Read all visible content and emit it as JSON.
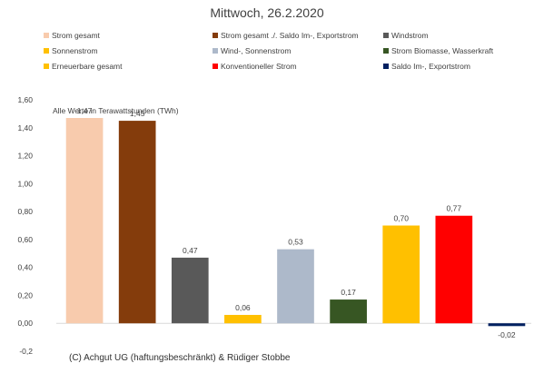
{
  "chart_data": {
    "type": "bar",
    "title": "Mittwoch, 26.2.2020",
    "note": "Alle Werte in Terawattstunden (TWh)",
    "categories": [
      "Strom gesamt",
      "Strom gesamt ./. Saldo Im-, Exportstrom",
      "Windstrom",
      "Sonnenstrom",
      "Wind-, Sonnenstrom",
      "Strom Biomasse, Wasserkraft",
      "Erneuerbare gesamt",
      "Konventioneller Strom",
      "Saldo Im-, Exportstrom"
    ],
    "values": [
      1.47,
      1.45,
      0.47,
      0.06,
      0.53,
      0.17,
      0.7,
      0.77,
      -0.02
    ],
    "value_labels": [
      "1,47",
      "1,45",
      "0,47",
      "0,06",
      "0,53",
      "0,17",
      "0,70",
      "0,77",
      "-0,02"
    ],
    "colors": [
      "#F8CBAD",
      "#843C0C",
      "#595959",
      "#FFC000",
      "#ADB9CA",
      "#375623",
      "#FFC000",
      "#FF0000",
      "#002060"
    ],
    "ylim": [
      -0.2,
      1.6
    ],
    "yticks": [
      1.6,
      1.4,
      1.2,
      1.0,
      0.8,
      0.6,
      0.4,
      0.2,
      0.0,
      -0.2
    ],
    "ytick_labels": [
      "1,60",
      "1,40",
      "1,20",
      "1,00",
      "0,80",
      "0,60",
      "0,40",
      "0,20",
      "0,00",
      "-0,2"
    ],
    "grid": false,
    "legend_position": "top"
  },
  "legend": [
    {
      "label": "Strom gesamt",
      "color": "#F8CBAD"
    },
    {
      "label": "Strom gesamt ./. Saldo Im-, Exportstrom",
      "color": "#843C0C"
    },
    {
      "label": "Windstrom",
      "color": "#595959"
    },
    {
      "label": "Sonnenstrom",
      "color": "#FFC000"
    },
    {
      "label": "Wind-, Sonnenstrom",
      "color": "#ADB9CA"
    },
    {
      "label": "Strom Biomasse, Wasserkraft",
      "color": "#375623"
    },
    {
      "label": "Erneuerbare gesamt",
      "color": "#FFC000"
    },
    {
      "label": "Konventioneller Strom",
      "color": "#FF0000"
    },
    {
      "label": "Saldo Im-, Exportstrom",
      "color": "#002060"
    }
  ],
  "footer": "(C) Achgut UG (haftungsbeschränkt) & Rüdiger Stobbe"
}
